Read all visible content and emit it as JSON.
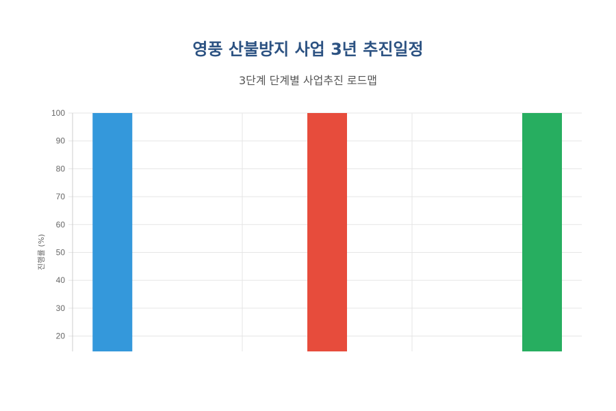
{
  "chart_data": {
    "type": "bar",
    "title": "영풍 산불방지 사업 3년 추진일정",
    "subtitle": "3단계 단계별 사업추진 로드맵",
    "xlabel": "",
    "ylabel": "진행률 (%)",
    "ylim": [
      14.5,
      100
    ],
    "yticks": [
      20,
      30,
      40,
      50,
      60,
      70,
      80,
      90,
      100
    ],
    "grid": true,
    "categories": [
      "",
      "",
      ""
    ],
    "values": [
      100,
      100,
      100
    ],
    "colors": [
      "#3498db",
      "#e74c3c",
      "#27ae60"
    ]
  }
}
